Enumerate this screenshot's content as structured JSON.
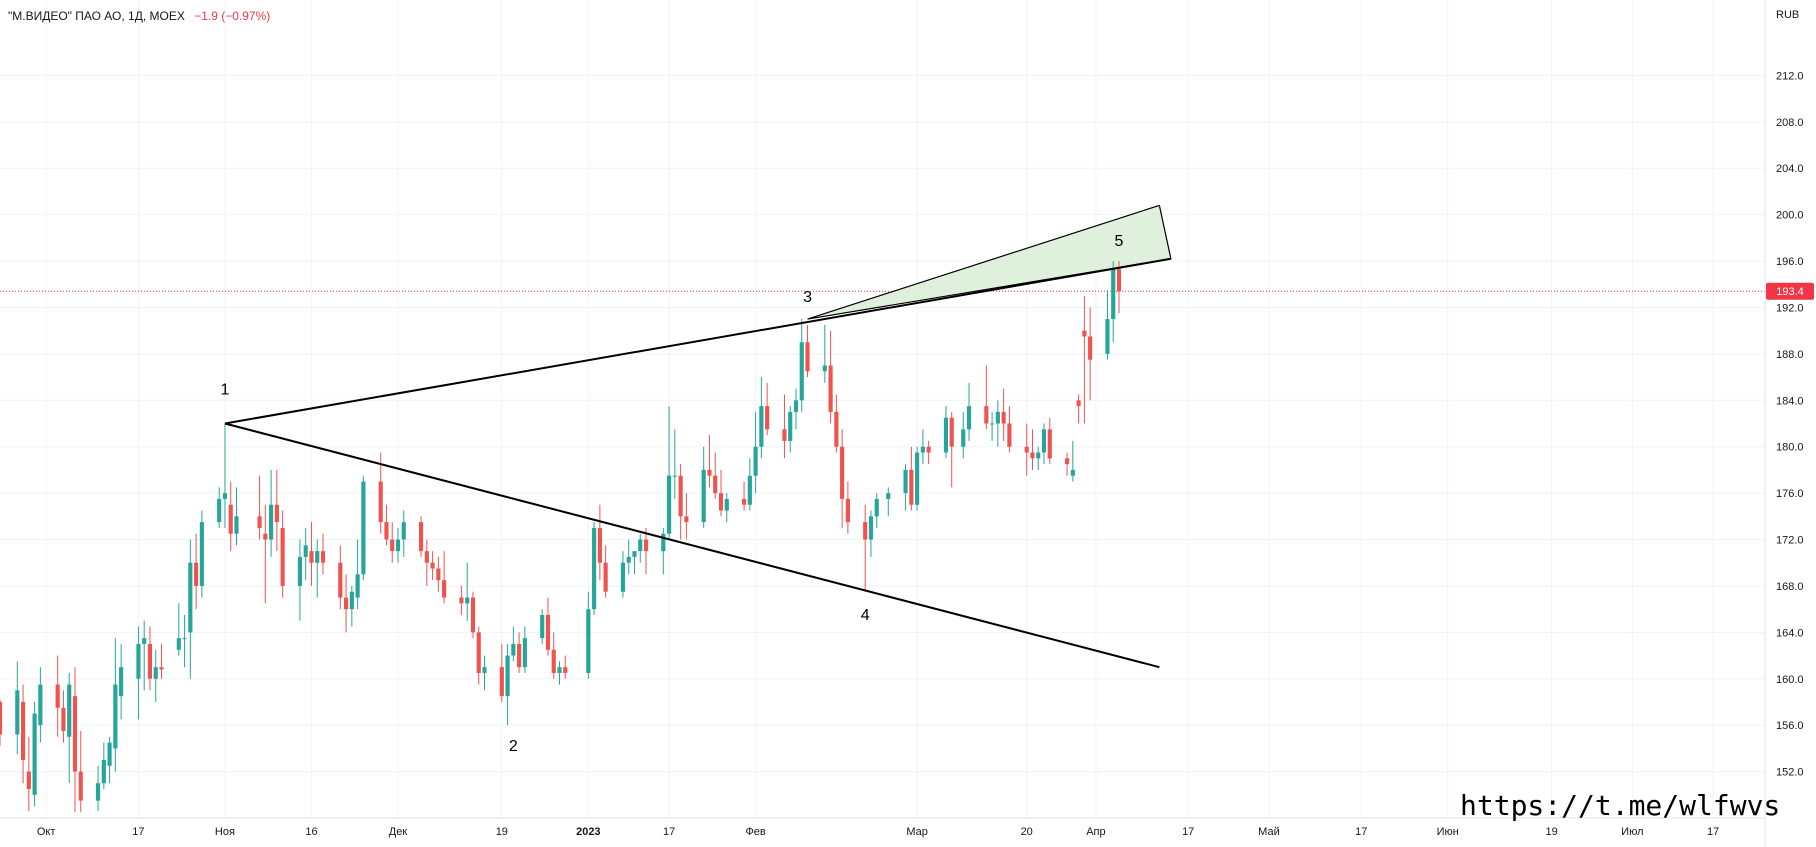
{
  "legend": {
    "symbol": "\"М.ВИДЕО\" ПАО АО, 1Д, MOEX",
    "change": "−1.9 (−0.97%)"
  },
  "watermark": "https://t.me/wlfwvs",
  "colors": {
    "up": "#26a69a",
    "down": "#ef5350",
    "grid": "#f0f3fa",
    "axis_text": "#131722",
    "price_label_bg": "#f23645",
    "price_line": "#f23645",
    "triangle_fill": "#dcefd8",
    "line": "#000000"
  },
  "chart_data": {
    "type": "candlestick",
    "currency_label": "RUB",
    "last_price": 193.4,
    "last_price_label": "193.4",
    "ylim": [
      148.0,
      218.5
    ],
    "xlim": [
      "2022-09-23",
      "2023-07-26"
    ],
    "y_ticks": [
      "152.0",
      "156.0",
      "160.0",
      "164.0",
      "168.0",
      "172.0",
      "176.0",
      "180.0",
      "184.0",
      "188.0",
      "192.0",
      "196.0",
      "200.0",
      "204.0",
      "208.0",
      "212.0"
    ],
    "x_ticks": [
      {
        "date": "2022-10-01",
        "label": "Окт"
      },
      {
        "date": "2022-10-17",
        "label": "17"
      },
      {
        "date": "2022-11-01",
        "label": "Ноя"
      },
      {
        "date": "2022-11-16",
        "label": "16"
      },
      {
        "date": "2022-12-01",
        "label": "Дек"
      },
      {
        "date": "2022-12-19",
        "label": "19"
      },
      {
        "date": "2023-01-03",
        "label": "2023"
      },
      {
        "date": "2023-01-17",
        "label": "17"
      },
      {
        "date": "2023-02-01",
        "label": "Фев"
      },
      {
        "date": "2023-03-01",
        "label": "Мар"
      },
      {
        "date": "2023-03-20",
        "label": "20"
      },
      {
        "date": "2023-04-01",
        "label": "Апр"
      },
      {
        "date": "2023-04-17",
        "label": "17"
      },
      {
        "date": "2023-05-01",
        "label": "Май"
      },
      {
        "date": "2023-05-17",
        "label": "17"
      },
      {
        "date": "2023-06-01",
        "label": "Июн"
      },
      {
        "date": "2023-06-19",
        "label": "19"
      },
      {
        "date": "2023-07-03",
        "label": "Июл"
      },
      {
        "date": "2023-07-17",
        "label": "17"
      }
    ],
    "candles": [
      [
        "2022-09-23",
        158,
        158.2,
        154.2,
        155.2
      ],
      [
        "2022-09-26",
        155.2,
        161.5,
        153.5,
        159
      ],
      [
        "2022-09-27",
        158,
        159.5,
        151,
        153
      ],
      [
        "2022-09-28",
        152,
        155,
        148.6,
        150.5
      ],
      [
        "2022-09-29",
        150,
        158,
        149,
        157
      ],
      [
        "2022-09-30",
        156,
        161,
        154.5,
        159.5
      ],
      [
        "2022-10-03",
        159.5,
        162,
        155,
        157.5
      ],
      [
        "2022-10-04",
        157.5,
        159,
        154.5,
        155.5
      ],
      [
        "2022-10-05",
        155,
        160.5,
        151,
        159.5
      ],
      [
        "2022-10-06",
        158.5,
        161,
        148.5,
        152
      ],
      [
        "2022-10-07",
        152,
        155.5,
        148.5,
        149.5
      ],
      [
        "2022-10-10",
        149.5,
        152.5,
        148.6,
        151
      ],
      [
        "2022-10-11",
        151,
        154.5,
        150.5,
        153
      ],
      [
        "2022-10-12",
        152.5,
        155,
        151,
        154.5
      ],
      [
        "2022-10-13",
        154,
        163.5,
        152,
        159.5
      ],
      [
        "2022-10-14",
        158.5,
        163,
        156.5,
        161
      ],
      [
        "2022-10-17",
        160,
        164.5,
        156.5,
        163
      ],
      [
        "2022-10-18",
        163,
        165,
        159,
        163.5
      ],
      [
        "2022-10-19",
        163,
        164.5,
        159,
        160
      ],
      [
        "2022-10-20",
        160,
        162.5,
        158,
        161
      ],
      [
        "2022-10-21",
        161,
        163,
        160,
        160.8
      ],
      [
        "2022-10-24",
        162.5,
        166.5,
        162,
        163.5
      ],
      [
        "2022-10-25",
        163.5,
        165.5,
        161,
        163.5
      ],
      [
        "2022-10-26",
        164,
        172,
        160,
        170
      ],
      [
        "2022-10-27",
        170,
        172.5,
        166,
        168
      ],
      [
        "2022-10-28",
        168,
        174.5,
        167,
        173.5
      ],
      [
        "2022-10-31",
        173.5,
        176.5,
        173,
        175.5
      ],
      [
        "2022-11-01",
        175.5,
        182,
        173,
        176
      ],
      [
        "2022-11-02",
        175,
        177,
        171,
        172.5
      ],
      [
        "2022-11-03",
        172.5,
        176.5,
        171.5,
        174
      ],
      [
        "2022-11-07",
        174,
        177.5,
        172,
        173
      ],
      [
        "2022-11-08",
        172.5,
        175,
        166.5,
        172
      ],
      [
        "2022-11-09",
        172,
        178,
        170.5,
        175
      ],
      [
        "2022-11-10",
        175,
        178,
        171,
        173.5
      ],
      [
        "2022-11-11",
        173,
        174.5,
        167,
        168
      ],
      [
        "2022-11-14",
        168,
        172,
        165,
        170.5
      ],
      [
        "2022-11-15",
        170.5,
        173,
        168.5,
        171.5
      ],
      [
        "2022-11-16",
        171,
        173.5,
        168,
        170
      ],
      [
        "2022-11-17",
        170,
        172,
        167,
        171
      ],
      [
        "2022-11-18",
        171,
        172.5,
        169,
        170
      ],
      [
        "2022-11-21",
        170,
        171.5,
        166,
        167
      ],
      [
        "2022-11-22",
        167,
        169,
        164,
        166
      ],
      [
        "2022-11-23",
        166,
        168,
        164.5,
        167.5
      ],
      [
        "2022-11-24",
        167,
        172,
        166,
        169
      ],
      [
        "2022-11-25",
        169,
        177.5,
        168.5,
        177
      ],
      [
        "2022-11-28",
        177,
        179.5,
        172.5,
        173.5
      ],
      [
        "2022-11-29",
        173.5,
        175,
        171.5,
        172
      ],
      [
        "2022-11-30",
        172,
        173.5,
        170,
        171
      ],
      [
        "2022-12-01",
        171,
        173,
        170,
        172
      ],
      [
        "2022-12-02",
        172,
        174.5,
        170.5,
        173.5
      ],
      [
        "2022-12-05",
        173.5,
        174,
        170.5,
        171
      ],
      [
        "2022-12-06",
        171,
        172,
        168,
        170
      ],
      [
        "2022-12-07",
        170,
        171,
        168.5,
        169.5
      ],
      [
        "2022-12-08",
        169.5,
        170.5,
        167.5,
        168.5
      ],
      [
        "2022-12-09",
        168.5,
        171,
        166.5,
        167
      ],
      [
        "2022-12-12",
        167,
        168,
        165.5,
        166.5
      ],
      [
        "2022-12-13",
        166.5,
        170,
        165,
        167
      ],
      [
        "2022-12-14",
        167,
        167.5,
        163.5,
        164
      ],
      [
        "2022-12-15",
        164,
        164.5,
        159.5,
        160.5
      ],
      [
        "2022-12-16",
        160.5,
        162,
        159,
        161
      ],
      [
        "2022-12-19",
        161,
        163,
        158,
        158.5
      ],
      [
        "2022-12-20",
        158.5,
        163,
        156,
        162
      ],
      [
        "2022-12-21",
        162,
        164.5,
        161.5,
        163
      ],
      [
        "2022-12-22",
        163,
        164,
        160.5,
        161
      ],
      [
        "2022-12-23",
        161,
        164.5,
        160.5,
        163.5
      ],
      [
        "2022-12-26",
        163.5,
        166,
        163,
        165.5
      ],
      [
        "2022-12-27",
        165.5,
        167,
        162,
        162.5
      ],
      [
        "2022-12-28",
        162.5,
        164,
        160,
        160.5
      ],
      [
        "2022-12-29",
        160.5,
        161.5,
        159.5,
        161
      ],
      [
        "2022-12-30",
        161,
        162,
        160,
        160.5
      ],
      [
        "2023-01-03",
        160.5,
        167.5,
        160,
        166
      ],
      [
        "2023-01-04",
        166,
        173.5,
        165.5,
        173
      ],
      [
        "2023-01-05",
        173,
        175,
        168.5,
        170
      ],
      [
        "2023-01-06",
        170,
        171.5,
        167,
        167.5
      ],
      [
        "2023-01-09",
        167.5,
        171,
        167,
        170
      ],
      [
        "2023-01-10",
        170,
        172,
        169,
        170.5
      ],
      [
        "2023-01-11",
        170.5,
        171,
        169,
        171
      ],
      [
        "2023-01-12",
        171,
        172.5,
        170,
        172
      ],
      [
        "2023-01-13",
        172,
        173,
        169,
        171
      ],
      [
        "2023-01-16",
        171,
        173,
        169,
        172.5
      ],
      [
        "2023-01-17",
        172.5,
        183.5,
        172,
        177.5
      ],
      [
        "2023-01-18",
        177.5,
        181.5,
        175.5,
        177.5
      ],
      [
        "2023-01-19",
        177.5,
        178.5,
        172,
        174
      ],
      [
        "2023-01-20",
        174,
        176,
        172,
        173.5
      ],
      [
        "2023-01-23",
        173.5,
        180,
        173,
        178
      ],
      [
        "2023-01-24",
        178,
        181,
        176.5,
        177.5
      ],
      [
        "2023-01-25",
        177.5,
        179.5,
        175.5,
        176
      ],
      [
        "2023-01-26",
        176,
        178,
        174,
        174.5
      ],
      [
        "2023-01-27",
        174.5,
        176,
        173.5,
        175.5
      ],
      [
        "2023-01-30",
        175.5,
        177,
        174.5,
        175
      ],
      [
        "2023-01-31",
        175,
        179,
        174.5,
        177.5
      ],
      [
        "2023-02-01",
        177.5,
        183,
        176,
        180
      ],
      [
        "2023-02-02",
        180,
        186,
        179,
        183.5
      ],
      [
        "2023-02-03",
        183.5,
        185.5,
        181,
        181.5
      ],
      [
        "2023-02-06",
        181.5,
        184.5,
        179,
        180.5
      ],
      [
        "2023-02-07",
        180.5,
        183.5,
        179.5,
        183
      ],
      [
        "2023-02-08",
        183,
        185,
        181.5,
        184
      ],
      [
        "2023-02-09",
        184,
        191,
        183,
        189
      ],
      [
        "2023-02-10",
        189,
        190.5,
        186,
        186.5
      ],
      [
        "2023-02-13",
        186.5,
        190.5,
        185.5,
        187
      ],
      [
        "2023-02-14",
        187,
        190,
        182,
        183
      ],
      [
        "2023-02-15",
        183,
        184.5,
        179.5,
        180
      ],
      [
        "2023-02-16",
        180,
        181.5,
        173,
        175.5
      ],
      [
        "2023-02-17",
        175.5,
        177,
        172.5,
        173.5
      ],
      [
        "2023-02-20",
        173.5,
        175,
        167.5,
        172
      ],
      [
        "2023-02-21",
        172,
        174.5,
        170.5,
        174
      ],
      [
        "2023-02-22",
        174,
        176,
        173,
        175.5
      ],
      [
        "2023-02-24",
        175.5,
        176.5,
        174,
        176
      ],
      [
        "2023-02-27",
        176,
        178.5,
        174.5,
        178
      ],
      [
        "2023-02-28",
        178,
        180,
        174.5,
        175
      ],
      [
        "2023-03-01",
        175,
        180,
        174.5,
        179.5
      ],
      [
        "2023-03-02",
        179.5,
        181.5,
        178.5,
        180
      ],
      [
        "2023-03-03",
        180,
        180.5,
        178.5,
        179.5
      ],
      [
        "2023-03-06",
        179.5,
        183.5,
        179,
        182.5
      ],
      [
        "2023-03-07",
        182.5,
        183,
        176.5,
        180
      ],
      [
        "2023-03-09",
        180,
        183,
        179,
        181.5
      ],
      [
        "2023-03-10",
        181.5,
        185.5,
        180.5,
        183.5
      ],
      [
        "2023-03-13",
        183.5,
        187,
        181.5,
        182
      ],
      [
        "2023-03-14",
        182,
        183,
        180.5,
        182
      ],
      [
        "2023-03-15",
        182,
        184,
        180,
        183
      ],
      [
        "2023-03-16",
        183,
        185,
        180.5,
        182
      ],
      [
        "2023-03-17",
        182,
        183.5,
        179.5,
        180
      ],
      [
        "2023-03-20",
        180,
        182,
        177.5,
        179.5
      ],
      [
        "2023-03-21",
        179.5,
        181.5,
        178,
        179
      ],
      [
        "2023-03-22",
        179,
        180,
        178,
        179.5
      ],
      [
        "2023-03-23",
        179.5,
        182,
        178.5,
        181.5
      ],
      [
        "2023-03-24",
        181.5,
        182.5,
        178.5,
        179
      ],
      [
        "2023-03-27",
        179,
        179.5,
        177.5,
        178.5
      ],
      [
        "2023-03-28",
        177.5,
        180.5,
        177,
        178
      ],
      [
        "2023-03-29",
        184,
        184.5,
        182,
        183.5
      ],
      [
        "2023-03-30",
        190,
        193,
        182,
        189.5
      ],
      [
        "2023-03-31",
        189.5,
        192,
        184,
        187.5
      ],
      [
        "2023-04-03",
        188,
        193.5,
        187.5,
        191
      ],
      [
        "2023-04-04",
        191,
        196,
        189,
        195.3
      ],
      [
        "2023-04-05",
        195.3,
        196,
        191.5,
        193.4
      ]
    ]
  },
  "drawings": {
    "wave_labels": [
      {
        "label": "1",
        "date": "2022-11-01",
        "price": 185.0
      },
      {
        "label": "2",
        "date": "2022-12-21",
        "price": 154.3
      },
      {
        "label": "3",
        "date": "2023-02-10",
        "price": 193.0
      },
      {
        "label": "4",
        "date": "2023-02-20",
        "price": 165.6
      },
      {
        "label": "5",
        "date": "2023-04-05",
        "price": 197.8
      }
    ],
    "upper_trendline": {
      "from": {
        "date": "2022-11-01",
        "price": 182.0
      },
      "to": {
        "date": "2023-04-14",
        "price": 196.2
      }
    },
    "lower_trendline": {
      "from": {
        "date": "2022-11-01",
        "price": 182.0
      },
      "to": {
        "date": "2023-04-12",
        "price": 161.0
      }
    },
    "target_triangle": [
      {
        "date": "2023-02-10",
        "price": 191.0
      },
      {
        "date": "2023-04-12",
        "price": 200.8
      },
      {
        "date": "2023-04-14",
        "price": 196.2
      }
    ]
  }
}
